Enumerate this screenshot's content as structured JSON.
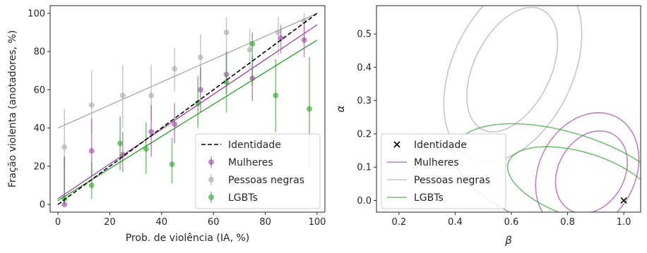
{
  "colors": {
    "mulheres": "#9e3fa5",
    "negras": "#a6a6a6",
    "lgbt": "#2ca02c",
    "identidade": "#000000"
  },
  "chart_data": [
    {
      "type": "scatter",
      "xlabel": "Prob. de violência (IA, %)",
      "ylabel": "Fração violenta (anotadores, %)",
      "xlim": [
        -3,
        103
      ],
      "ylim": [
        -4,
        104
      ],
      "xticks": [
        0,
        20,
        40,
        60,
        80,
        100
      ],
      "yticks": [
        0,
        20,
        40,
        60,
        80,
        100
      ],
      "grid": false,
      "legend_position": "lower-right",
      "legend": [
        {
          "label": "Identidade",
          "kind": "dashed-line",
          "color": "#000000"
        },
        {
          "label": "Mulheres",
          "kind": "errorbar",
          "color": "#9e3fa5"
        },
        {
          "label": "Pessoas negras",
          "kind": "errorbar",
          "color": "#a6a6a6"
        },
        {
          "label": "LGBTs",
          "kind": "errorbar",
          "color": "#2ca02c"
        }
      ],
      "identity_line": {
        "x": [
          0,
          100
        ],
        "y": [
          0,
          100
        ]
      },
      "fit_lines": [
        {
          "group": "negras",
          "x": [
            0,
            100
          ],
          "y": [
            40,
            100
          ]
        },
        {
          "group": "mulheres",
          "x": [
            0,
            100
          ],
          "y": [
            3,
            94
          ]
        },
        {
          "group": "lgbt",
          "x": [
            0,
            100
          ],
          "y": [
            2,
            86
          ]
        }
      ],
      "series": [
        {
          "name": "Pessoas negras",
          "group": "negras",
          "points": [
            {
              "x": 2.5,
              "y": 30,
              "lo": 20,
              "hi": 50
            },
            {
              "x": 13,
              "y": 52,
              "lo": 37,
              "hi": 70
            },
            {
              "x": 25,
              "y": 57,
              "lo": 40,
              "hi": 73
            },
            {
              "x": 36,
              "y": 57,
              "lo": 44,
              "hi": 73
            },
            {
              "x": 45,
              "y": 71,
              "lo": 59,
              "hi": 82
            },
            {
              "x": 55,
              "y": 77,
              "lo": 64,
              "hi": 89
            },
            {
              "x": 65,
              "y": 90,
              "lo": 78,
              "hi": 98
            },
            {
              "x": 74,
              "y": 81,
              "lo": 70,
              "hi": 92
            },
            {
              "x": 85,
              "y": 90,
              "lo": 78,
              "hi": 98
            },
            {
              "x": 95,
              "y": 96,
              "lo": 86,
              "hi": 100
            }
          ]
        },
        {
          "name": "Mulheres",
          "group": "mulheres",
          "points": [
            {
              "x": 2.5,
              "y": 0,
              "lo": 0,
              "hi": 25
            },
            {
              "x": 13,
              "y": 28,
              "lo": 15,
              "hi": 45
            },
            {
              "x": 25,
              "y": 26,
              "lo": 17,
              "hi": 38
            },
            {
              "x": 36,
              "y": 38,
              "lo": 25,
              "hi": 52
            },
            {
              "x": 45,
              "y": 42,
              "lo": 32,
              "hi": 53
            },
            {
              "x": 55,
              "y": 60,
              "lo": 48,
              "hi": 72
            },
            {
              "x": 65,
              "y": 68,
              "lo": 58,
              "hi": 80
            },
            {
              "x": 75,
              "y": 66,
              "lo": 54,
              "hi": 78
            },
            {
              "x": 86,
              "y": 87,
              "lo": 79,
              "hi": 94
            },
            {
              "x": 95,
              "y": 86,
              "lo": 77,
              "hi": 95
            }
          ]
        },
        {
          "name": "LGBTs",
          "group": "lgbt",
          "points": [
            {
              "x": 2.5,
              "y": 3,
              "lo": 0,
              "hi": 25
            },
            {
              "x": 13,
              "y": 10,
              "lo": 3,
              "hi": 22
            },
            {
              "x": 24,
              "y": 32,
              "lo": 18,
              "hi": 46
            },
            {
              "x": 34,
              "y": 29,
              "lo": 16,
              "hi": 43
            },
            {
              "x": 44,
              "y": 21,
              "lo": 11,
              "hi": 35
            },
            {
              "x": 54,
              "y": 53,
              "lo": 40,
              "hi": 67
            },
            {
              "x": 65,
              "y": 64,
              "lo": 48,
              "hi": 78
            },
            {
              "x": 75,
              "y": 84,
              "lo": 62,
              "hi": 90
            },
            {
              "x": 84,
              "y": 57,
              "lo": 38,
              "hi": 76
            },
            {
              "x": 97,
              "y": 50,
              "lo": 20,
              "hi": 77
            }
          ]
        }
      ]
    },
    {
      "type": "line",
      "xlabel": "β",
      "ylabel": "α",
      "xlim": [
        0.12,
        1.06
      ],
      "ylim": [
        -0.035,
        0.585
      ],
      "xticks": [
        0.2,
        0.4,
        0.6,
        0.8,
        1.0
      ],
      "yticks": [
        0.0,
        0.1,
        0.2,
        0.3,
        0.4,
        0.5
      ],
      "grid": false,
      "legend_position": "lower-left",
      "legend": [
        {
          "label": "Identidade",
          "kind": "marker-x",
          "color": "#000000"
        },
        {
          "label": "Mulheres",
          "kind": "line",
          "color": "#9e3fa5"
        },
        {
          "label": "Pessoas negras",
          "kind": "line",
          "color": "#a6a6a6"
        },
        {
          "label": "LGBTs",
          "kind": "line",
          "color": "#2ca02c"
        }
      ],
      "identity_point": {
        "x": 1.0,
        "y": 0.0
      },
      "ellipses": [
        {
          "group": "negras",
          "cx": 0.603,
          "cy": 0.393,
          "rx": 0.13,
          "ry": 0.21,
          "theta": -0.62
        },
        {
          "group": "negras",
          "cx": 0.605,
          "cy": 0.395,
          "rx": 0.205,
          "ry": 0.31,
          "theta": -0.62
        },
        {
          "group": "mulheres",
          "cx": 0.885,
          "cy": 0.085,
          "rx": 0.11,
          "ry": 0.14,
          "theta": -0.85
        },
        {
          "group": "mulheres",
          "cx": 0.87,
          "cy": 0.085,
          "rx": 0.16,
          "ry": 0.2,
          "theta": -0.85
        },
        {
          "group": "lgbt",
          "cx": 0.85,
          "cy": 0.045,
          "rx": 0.1,
          "ry": 0.27,
          "theta": 1.33
        },
        {
          "group": "lgbt",
          "cx": 0.795,
          "cy": 0.055,
          "rx": 0.15,
          "ry": 0.41,
          "theta": 1.33
        }
      ]
    }
  ]
}
